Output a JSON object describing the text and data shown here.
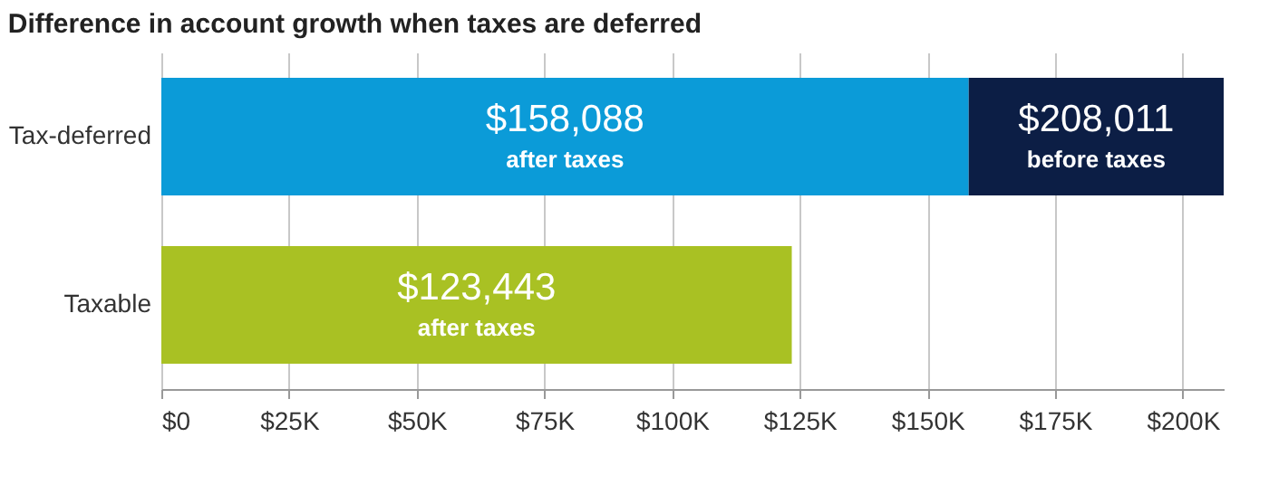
{
  "chart_data": {
    "type": "bar",
    "orientation": "horizontal",
    "stacked": true,
    "title": "Difference in account growth when taxes are deferred",
    "categories": [
      "Tax-deferred",
      "Taxable"
    ],
    "series": [
      {
        "colors": [
          "#0b9bd8",
          "#a9c123"
        ],
        "values": [
          158088,
          123443
        ],
        "value_labels": [
          "$158,088\nafter taxes",
          "$123,443\nafter taxes"
        ]
      },
      {
        "color": "#0c1e45",
        "values": [
          49923,
          null
        ]
      }
    ],
    "totals": [
      "$208,011\nbefore taxes",
      null
    ],
    "xlim": [
      0,
      208011
    ],
    "xticks": [
      {
        "value": 0,
        "label": "$0"
      },
      {
        "value": 25000,
        "label": "$25K"
      },
      {
        "value": 50000,
        "label": "$50K"
      },
      {
        "value": 75000,
        "label": "$75K"
      },
      {
        "value": 100000,
        "label": "$100K"
      },
      {
        "value": 125000,
        "label": "$125K"
      },
      {
        "value": 150000,
        "label": "$150K"
      },
      {
        "value": 175000,
        "label": "$175K"
      },
      {
        "value": 200000,
        "label": "$200K"
      }
    ],
    "grid": "x",
    "legend": false
  }
}
